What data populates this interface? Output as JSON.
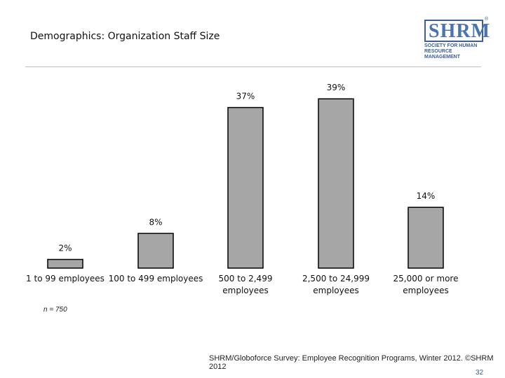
{
  "slide": {
    "title": "Demographics: Organization Staff Size",
    "note": "n = 750",
    "source": "SHRM/Globoforce Survey: Employee Recognition Programs, Winter 2012. ©SHRM 2012",
    "page_number": "32"
  },
  "logo": {
    "word": "SHRM",
    "subtitle": "SOCIETY FOR HUMAN RESOURCE MANAGEMENT",
    "reg_mark": "®"
  },
  "colors": {
    "bar_fill": "#a6a6a6",
    "bar_stroke": "#000000",
    "brand": "#3d5f94"
  },
  "chart_data": {
    "type": "bar",
    "title": "Demographics: Organization Staff Size",
    "categories": [
      [
        "1 to 99 employees"
      ],
      [
        "100 to 499 employees"
      ],
      [
        "500 to 2,499",
        "employees"
      ],
      [
        "2,500 to 24,999",
        "employees"
      ],
      [
        "25,000 or more",
        "employees"
      ]
    ],
    "values": [
      2,
      8,
      37,
      39,
      14
    ],
    "value_labels": [
      "2%",
      "8%",
      "37%",
      "39%",
      "14%"
    ],
    "unit": "%",
    "ylim": [
      0,
      40
    ],
    "grid": false,
    "legend": "none"
  }
}
